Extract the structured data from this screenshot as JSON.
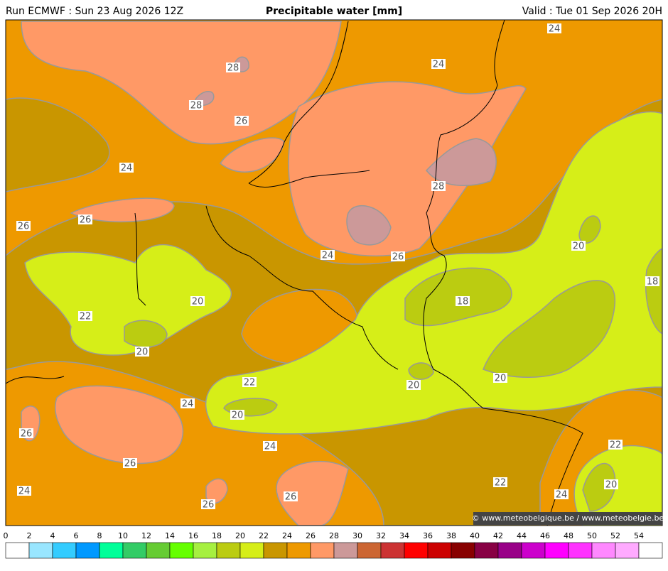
{
  "header": {
    "run": "Run ECMWF : Sun 23 Aug 2026 12Z",
    "title": "Precipitable water [mm]",
    "valid": "Valid : Tue 01 Sep 2026 20H"
  },
  "map": {
    "contour_labels": [
      28,
      28,
      26,
      24,
      24,
      24,
      28,
      26,
      26,
      20,
      24,
      26,
      18,
      20,
      18,
      22,
      20,
      22,
      20,
      20,
      24,
      20,
      26,
      24,
      22,
      26,
      22,
      20,
      24,
      24,
      26,
      26
    ],
    "copyright": "© www.meteobelgique.be / www.meteobelgie.be"
  },
  "colorbar": {
    "ticks": [
      0,
      2,
      4,
      6,
      8,
      10,
      12,
      14,
      16,
      18,
      20,
      22,
      24,
      26,
      28,
      30,
      32,
      34,
      36,
      38,
      40,
      42,
      44,
      46,
      48,
      50,
      52,
      54
    ],
    "colors": [
      "#ffffff",
      "#99e6ff",
      "#33ccff",
      "#0099ff",
      "#00ff99",
      "#33cc66",
      "#66cc33",
      "#66ff00",
      "#a6f040",
      "#bbcc11",
      "#d6ee18",
      "#c99600",
      "#ee9900",
      "#ff9966",
      "#cc9999",
      "#cc6633",
      "#cc3333",
      "#ff0000",
      "#cc0000",
      "#880000",
      "#880044",
      "#990088",
      "#cc00cc",
      "#ff00ff",
      "#ff33ff",
      "#ff88ff",
      "#ffaaff",
      "#ffffff"
    ]
  }
}
